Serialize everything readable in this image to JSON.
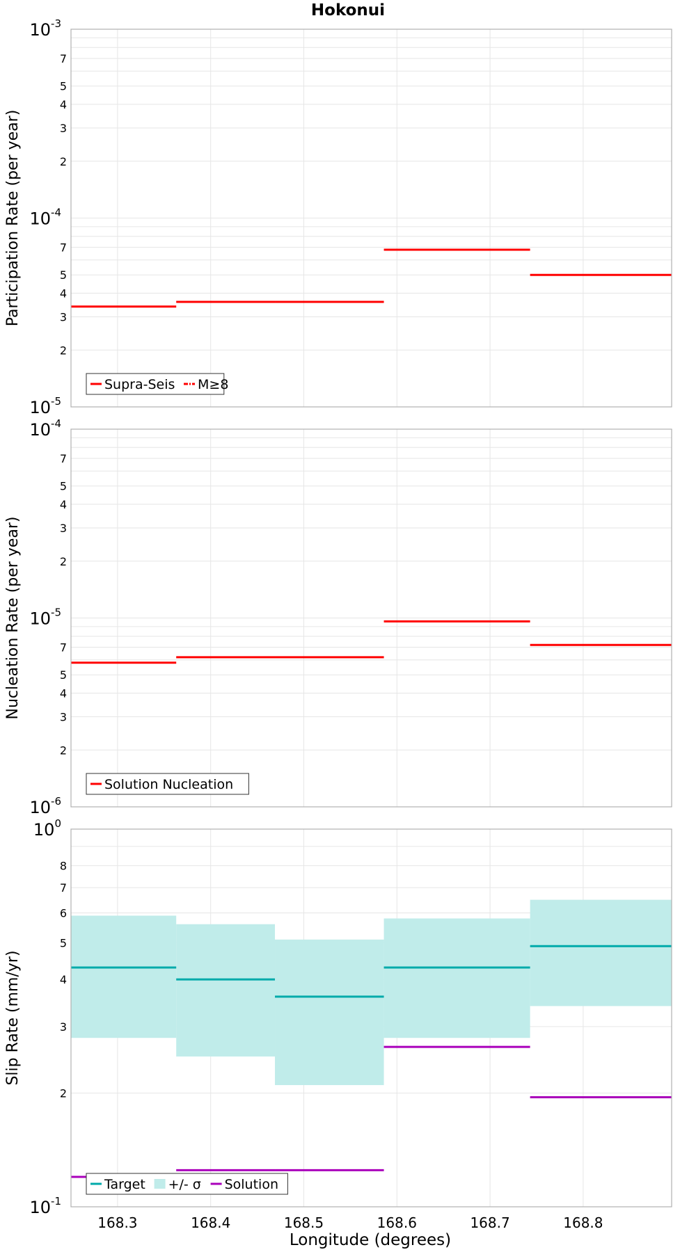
{
  "title": "Hokonui",
  "xlabel": "Longitude (degrees)",
  "x_ticks": [
    "168.3",
    "168.4",
    "168.5",
    "168.6",
    "168.7",
    "168.8"
  ],
  "colors": {
    "supra_seis": "#ff0000",
    "target": "#00aaaa",
    "sigma_band": "#c0ecea",
    "solution": "#aa00bb",
    "grid": "#e6e6e6",
    "frame": "#b0b0b0"
  },
  "chart_data": [
    {
      "type": "line",
      "panel": "participation",
      "ylabel": "Participation Rate (per year)",
      "yscale": "log",
      "ylim": [
        1e-05,
        0.001
      ],
      "xlim": [
        168.25,
        168.895
      ],
      "decade_labels": [
        {
          "value": 1e-05,
          "base": "10",
          "exp": "-5"
        },
        {
          "value": 0.0001,
          "base": "10",
          "exp": "-4"
        },
        {
          "value": 0.001,
          "base": "10",
          "exp": "-3"
        }
      ],
      "minor_labels": [
        {
          "value": 2e-05,
          "label": "2"
        },
        {
          "value": 3e-05,
          "label": "3"
        },
        {
          "value": 4e-05,
          "label": "4"
        },
        {
          "value": 5e-05,
          "label": "5"
        },
        {
          "value": 7e-05,
          "label": "7"
        },
        {
          "value": 0.0002,
          "label": "2"
        },
        {
          "value": 0.0003,
          "label": "3"
        },
        {
          "value": 0.0004,
          "label": "4"
        },
        {
          "value": 0.0005,
          "label": "5"
        },
        {
          "value": 0.0007,
          "label": "7"
        }
      ],
      "series": [
        {
          "name": "Supra-Seis",
          "style": "solid",
          "color": "#ff0000",
          "segments": [
            {
              "x0": 168.25,
              "x1": 168.363,
              "y": 3.4e-05
            },
            {
              "x0": 168.363,
              "x1": 168.469,
              "y": 3.6e-05
            },
            {
              "x0": 168.469,
              "x1": 168.586,
              "y": 3.6e-05
            },
            {
              "x0": 168.586,
              "x1": 168.743,
              "y": 6.8e-05
            },
            {
              "x0": 168.743,
              "x1": 168.895,
              "y": 5e-05
            }
          ]
        },
        {
          "name": "M≥8",
          "style": "dashdot",
          "color": "#ff0000",
          "segments": []
        }
      ],
      "legend": [
        "Supra-Seis",
        "M≥8"
      ],
      "legend_position": "bottom-left"
    },
    {
      "type": "line",
      "panel": "nucleation",
      "ylabel": "Nucleation Rate (per year)",
      "yscale": "log",
      "ylim": [
        1e-06,
        0.0001
      ],
      "xlim": [
        168.25,
        168.895
      ],
      "decade_labels": [
        {
          "value": 1e-06,
          "base": "10",
          "exp": "-6"
        },
        {
          "value": 1e-05,
          "base": "10",
          "exp": "-5"
        },
        {
          "value": 0.0001,
          "base": "10",
          "exp": "-4"
        }
      ],
      "minor_labels": [
        {
          "value": 2e-06,
          "label": "2"
        },
        {
          "value": 3e-06,
          "label": "3"
        },
        {
          "value": 4e-06,
          "label": "4"
        },
        {
          "value": 5e-06,
          "label": "5"
        },
        {
          "value": 7e-06,
          "label": "7"
        },
        {
          "value": 2e-05,
          "label": "2"
        },
        {
          "value": 3e-05,
          "label": "3"
        },
        {
          "value": 4e-05,
          "label": "4"
        },
        {
          "value": 5e-05,
          "label": "5"
        },
        {
          "value": 7e-05,
          "label": "7"
        }
      ],
      "series": [
        {
          "name": "Solution Nucleation",
          "style": "solid",
          "color": "#ff0000",
          "segments": [
            {
              "x0": 168.25,
              "x1": 168.363,
              "y": 5.8e-06
            },
            {
              "x0": 168.363,
              "x1": 168.469,
              "y": 6.2e-06
            },
            {
              "x0": 168.469,
              "x1": 168.586,
              "y": 6.2e-06
            },
            {
              "x0": 168.586,
              "x1": 168.743,
              "y": 9.6e-06
            },
            {
              "x0": 168.743,
              "x1": 168.895,
              "y": 7.2e-06
            }
          ]
        }
      ],
      "legend": [
        "Solution Nucleation"
      ],
      "legend_position": "bottom-left"
    },
    {
      "type": "line",
      "panel": "slip",
      "ylabel": "Slip Rate (mm/yr)",
      "yscale": "log",
      "ylim": [
        0.1,
        1.0
      ],
      "xlim": [
        168.25,
        168.895
      ],
      "decade_labels": [
        {
          "value": 0.1,
          "base": "10",
          "exp": "-1"
        },
        {
          "value": 1.0,
          "base": "10",
          "exp": "0"
        }
      ],
      "minor_labels": [
        {
          "value": 0.2,
          "label": "2"
        },
        {
          "value": 0.3,
          "label": "3"
        },
        {
          "value": 0.4,
          "label": "4"
        },
        {
          "value": 0.5,
          "label": "5"
        },
        {
          "value": 0.6,
          "label": "6"
        },
        {
          "value": 0.7,
          "label": "7"
        },
        {
          "value": 0.8,
          "label": "8"
        }
      ],
      "bands": [
        {
          "name": "+/- σ",
          "color": "#c0ecea",
          "segments": [
            {
              "x0": 168.25,
              "x1": 168.363,
              "low": 0.28,
              "high": 0.59
            },
            {
              "x0": 168.363,
              "x1": 168.469,
              "low": 0.25,
              "high": 0.56
            },
            {
              "x0": 168.469,
              "x1": 168.586,
              "low": 0.21,
              "high": 0.51
            },
            {
              "x0": 168.586,
              "x1": 168.743,
              "low": 0.28,
              "high": 0.58
            },
            {
              "x0": 168.743,
              "x1": 168.895,
              "low": 0.34,
              "high": 0.65
            }
          ]
        }
      ],
      "series": [
        {
          "name": "Target",
          "style": "solid",
          "color": "#00aaaa",
          "segments": [
            {
              "x0": 168.25,
              "x1": 168.363,
              "y": 0.43
            },
            {
              "x0": 168.363,
              "x1": 168.469,
              "y": 0.4
            },
            {
              "x0": 168.469,
              "x1": 168.586,
              "y": 0.36
            },
            {
              "x0": 168.586,
              "x1": 168.743,
              "y": 0.43
            },
            {
              "x0": 168.743,
              "x1": 168.895,
              "y": 0.49
            }
          ]
        },
        {
          "name": "Solution",
          "style": "solid",
          "color": "#aa00bb",
          "segments": [
            {
              "x0": 168.25,
              "x1": 168.363,
              "y": 0.12
            },
            {
              "x0": 168.363,
              "x1": 168.469,
              "y": 0.125
            },
            {
              "x0": 168.469,
              "x1": 168.586,
              "y": 0.125
            },
            {
              "x0": 168.586,
              "x1": 168.743,
              "y": 0.265
            },
            {
              "x0": 168.743,
              "x1": 168.895,
              "y": 0.195
            }
          ]
        }
      ],
      "legend": [
        "Target",
        "+/- σ",
        "Solution"
      ],
      "legend_position": "bottom-left"
    }
  ]
}
